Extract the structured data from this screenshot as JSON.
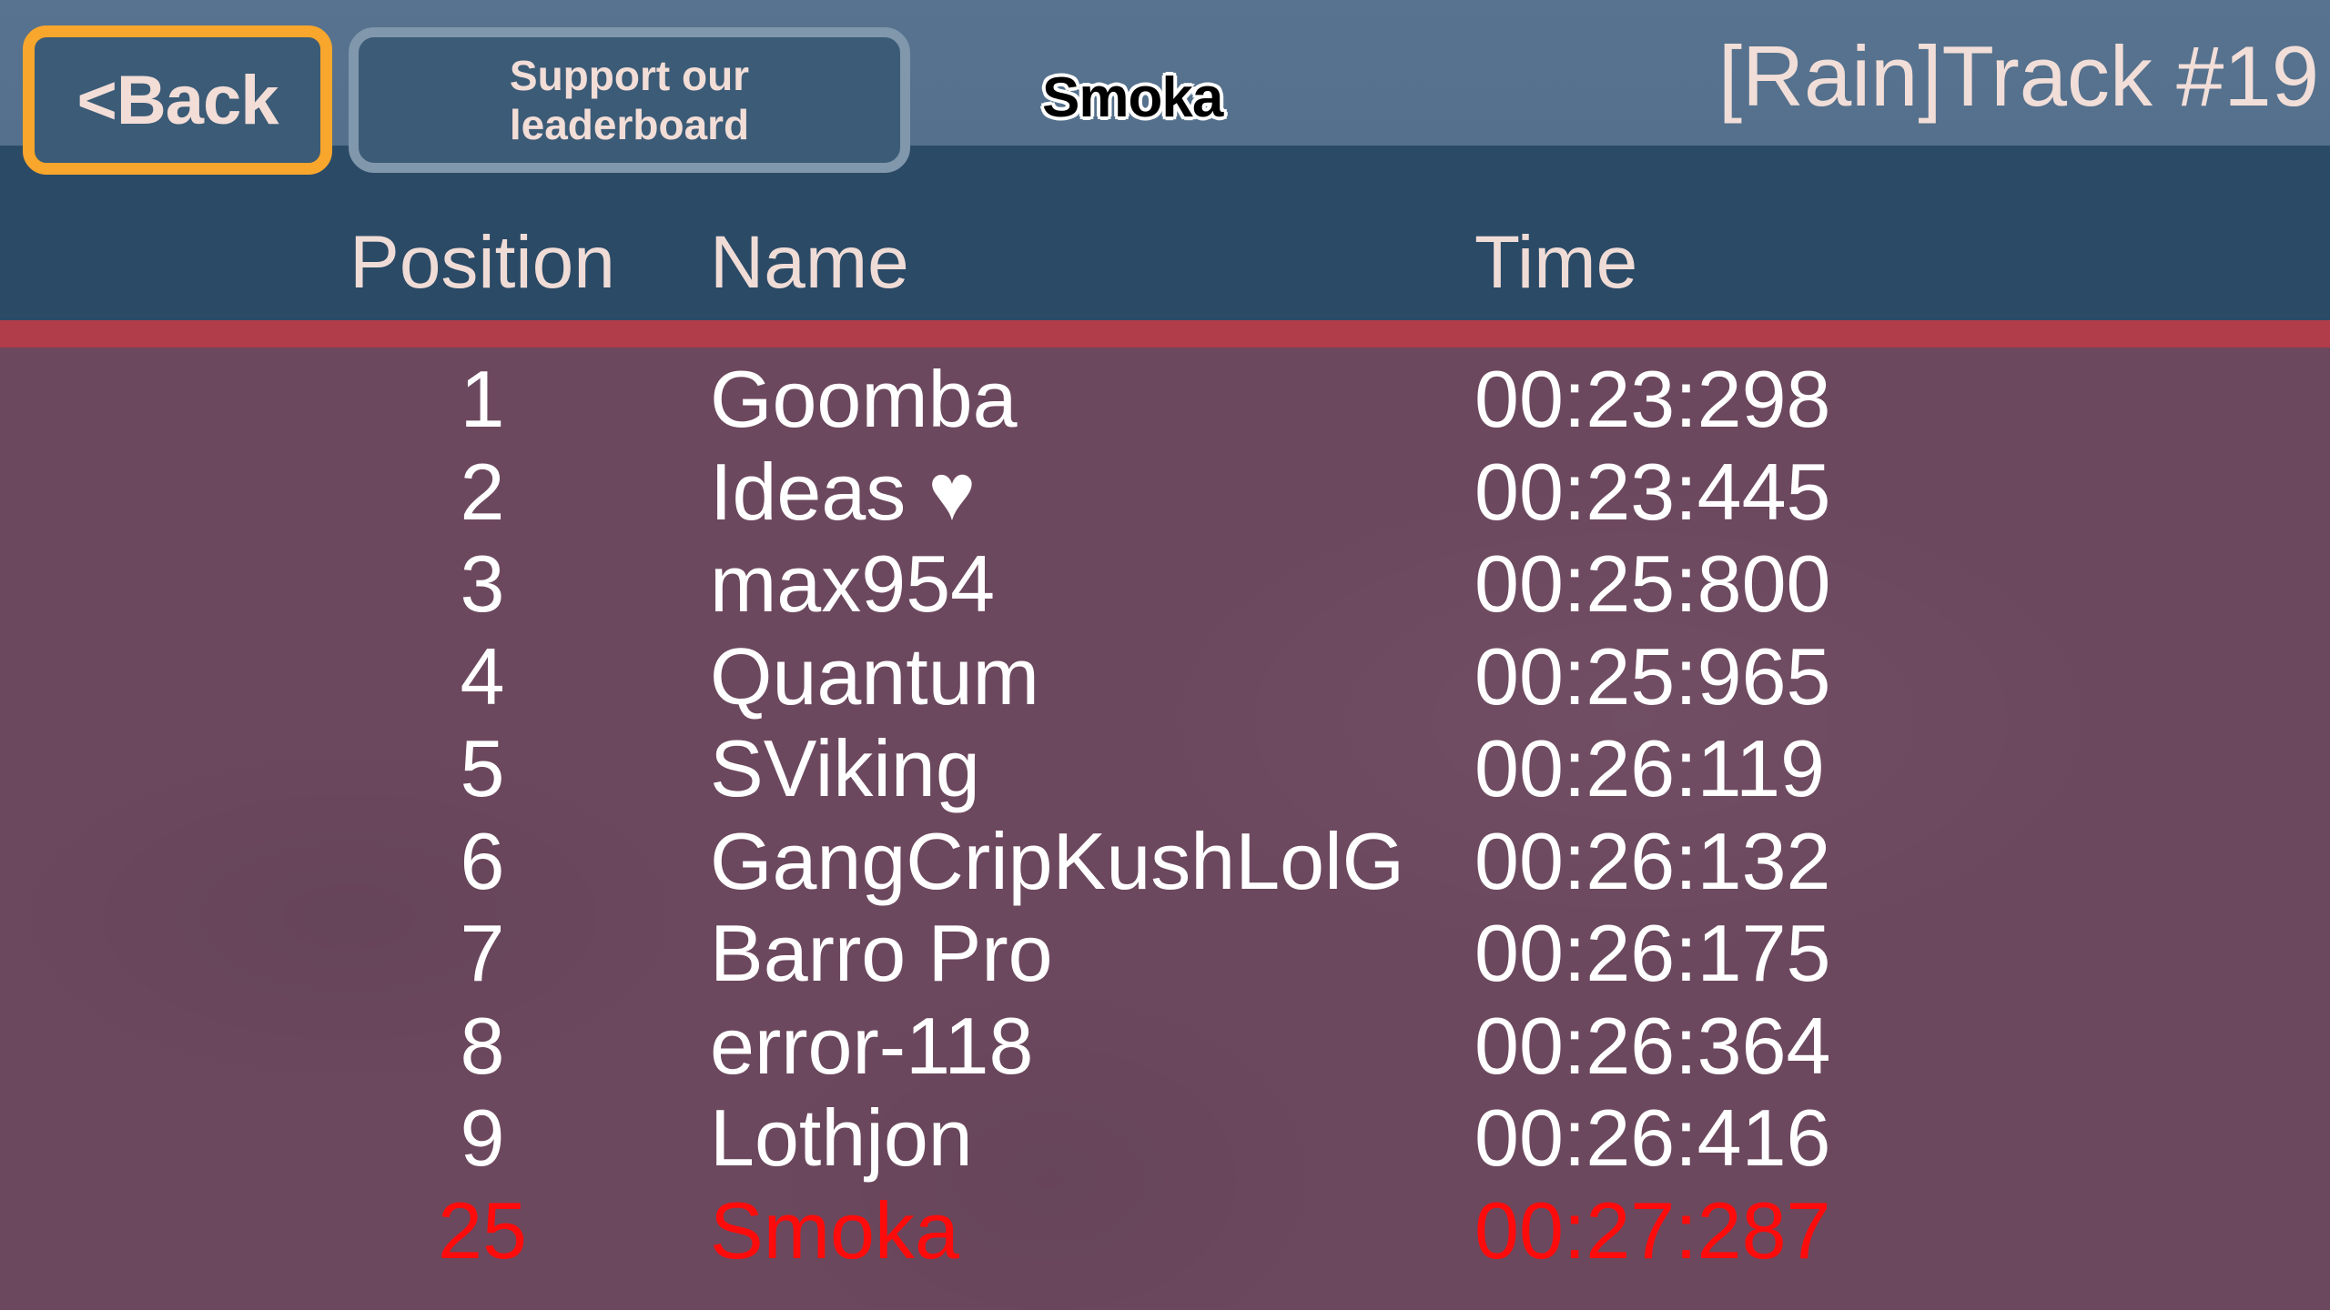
{
  "topbar": {
    "back_label": "<Back",
    "support_line1": "Support our",
    "support_line2": "leaderboard",
    "player_name": "Smoka",
    "title": "[Rain]Track #19"
  },
  "table": {
    "headers": {
      "position": "Position",
      "name": "Name",
      "time": "Time"
    },
    "rows": [
      {
        "position": "1",
        "name": "Goomba",
        "time": "00:23:298",
        "highlight": false
      },
      {
        "position": "2",
        "name": "Ideas ♥",
        "time": "00:23:445",
        "highlight": false
      },
      {
        "position": "3",
        "name": "max954",
        "time": "00:25:800",
        "highlight": false
      },
      {
        "position": "4",
        "name": "Quantum",
        "time": "00:25:965",
        "highlight": false
      },
      {
        "position": "5",
        "name": "SViking",
        "time": "00:26:119",
        "highlight": false
      },
      {
        "position": "6",
        "name": "GangCripKushLolG",
        "time": "00:26:132",
        "highlight": false
      },
      {
        "position": "7",
        "name": "Barro Pro",
        "time": "00:26:175",
        "highlight": false
      },
      {
        "position": "8",
        "name": "error-118",
        "time": "00:26:364",
        "highlight": false
      },
      {
        "position": "9",
        "name": "Lothjon",
        "time": "00:26:416",
        "highlight": false
      },
      {
        "position": "25",
        "name": "Smoka",
        "time": "00:27:287",
        "highlight": true
      }
    ]
  },
  "colors": {
    "topbar_bg": "#54708C",
    "header_band_bg": "#2B4A66",
    "divider_red": "#B13C4A",
    "body_bg": "#6C485E",
    "button_bg": "#3B5B76",
    "back_border_orange": "#F9A62C",
    "support_border_slate": "#8097AC",
    "label_pink": "#F2DDD7",
    "row_text": "#FFFFFF",
    "highlight_red": "#FF0B0B"
  }
}
